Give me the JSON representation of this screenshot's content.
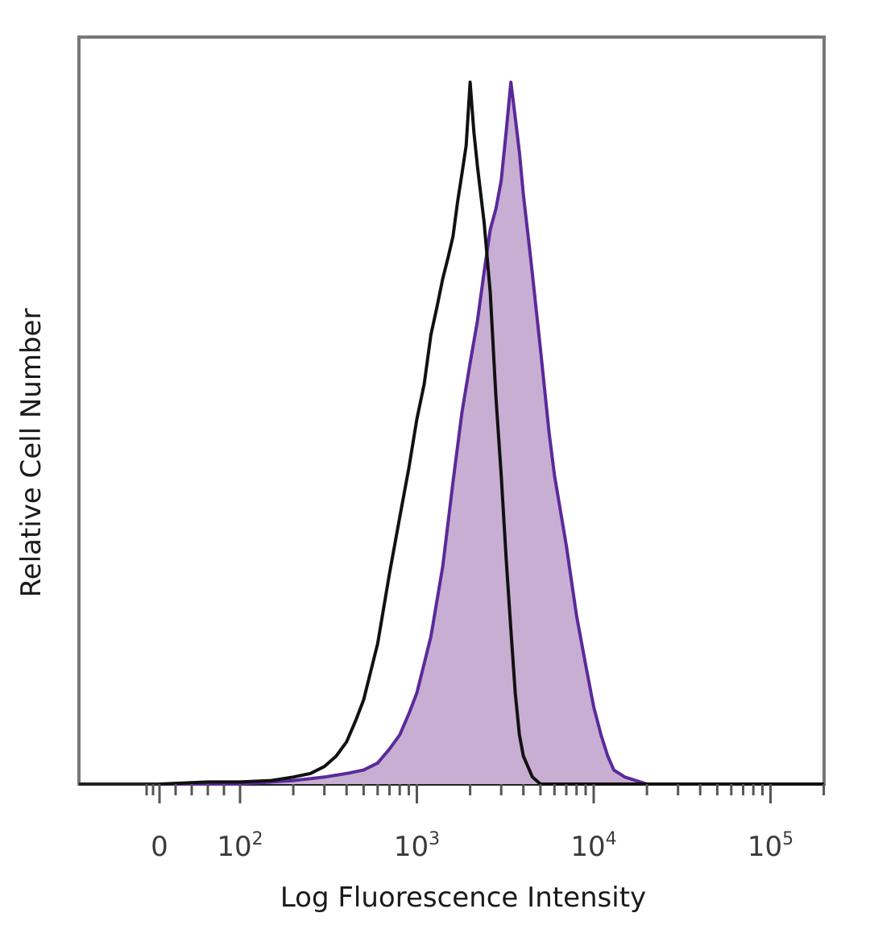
{
  "chart_data": {
    "type": "area",
    "title": "",
    "xlabel": "Log Fluorescence Intensity",
    "ylabel": "Relative Cell Number",
    "x_scale": "biexponential",
    "xlim": [
      -40,
      200000
    ],
    "ylim": [
      0,
      100
    ],
    "grid": false,
    "legend": "none",
    "x_ticks": [
      {
        "value": 0,
        "label": "0",
        "base": "",
        "exp": ""
      },
      {
        "value": 100,
        "label": "",
        "base": "10",
        "exp": "2"
      },
      {
        "value": 1000,
        "label": "",
        "base": "10",
        "exp": "3"
      },
      {
        "value": 10000,
        "label": "",
        "base": "10",
        "exp": "4"
      },
      {
        "value": 100000,
        "label": "",
        "base": "10",
        "exp": "5"
      }
    ],
    "series": [
      {
        "fill": "#c9aed3",
        "stroke": "#5a2a9a",
        "filled": true,
        "points": [
          [
            0,
            0
          ],
          [
            100,
            0
          ],
          [
            200,
            0.5
          ],
          [
            300,
            1
          ],
          [
            400,
            1.5
          ],
          [
            500,
            2
          ],
          [
            600,
            3
          ],
          [
            700,
            5
          ],
          [
            800,
            7
          ],
          [
            900,
            10
          ],
          [
            1000,
            13
          ],
          [
            1200,
            21
          ],
          [
            1400,
            31
          ],
          [
            1600,
            43
          ],
          [
            1800,
            53
          ],
          [
            2000,
            60
          ],
          [
            2200,
            66
          ],
          [
            2400,
            73
          ],
          [
            2600,
            79
          ],
          [
            2800,
            82
          ],
          [
            3000,
            86
          ],
          [
            3200,
            93
          ],
          [
            3400,
            100
          ],
          [
            3600,
            95
          ],
          [
            3800,
            90
          ],
          [
            4000,
            84
          ],
          [
            4400,
            75
          ],
          [
            5000,
            62
          ],
          [
            5600,
            50
          ],
          [
            6000,
            44
          ],
          [
            7000,
            34
          ],
          [
            8000,
            24
          ],
          [
            9000,
            17
          ],
          [
            10000,
            11
          ],
          [
            11000,
            7
          ],
          [
            12000,
            4
          ],
          [
            13000,
            2
          ],
          [
            15000,
            1
          ],
          [
            20000,
            0
          ],
          [
            200000,
            0
          ]
        ]
      },
      {
        "fill": "none",
        "stroke": "#111111",
        "filled": false,
        "points": [
          [
            0,
            0
          ],
          [
            60,
            0.3
          ],
          [
            100,
            0.3
          ],
          [
            150,
            0.5
          ],
          [
            200,
            1
          ],
          [
            250,
            1.5
          ],
          [
            300,
            2.5
          ],
          [
            350,
            4
          ],
          [
            400,
            6
          ],
          [
            450,
            9
          ],
          [
            500,
            12
          ],
          [
            600,
            20
          ],
          [
            700,
            30
          ],
          [
            800,
            38
          ],
          [
            900,
            45
          ],
          [
            1000,
            52
          ],
          [
            1100,
            57
          ],
          [
            1200,
            64
          ],
          [
            1300,
            68
          ],
          [
            1400,
            72
          ],
          [
            1500,
            75
          ],
          [
            1600,
            78
          ],
          [
            1700,
            83
          ],
          [
            1800,
            87
          ],
          [
            1900,
            91
          ],
          [
            2000,
            100
          ],
          [
            2100,
            93
          ],
          [
            2200,
            88
          ],
          [
            2400,
            80
          ],
          [
            2600,
            70
          ],
          [
            2800,
            55
          ],
          [
            3000,
            44
          ],
          [
            3200,
            32
          ],
          [
            3400,
            22
          ],
          [
            3600,
            13
          ],
          [
            3800,
            7
          ],
          [
            4000,
            4
          ],
          [
            4500,
            1
          ],
          [
            5000,
            0
          ],
          [
            200000,
            0
          ]
        ]
      }
    ]
  }
}
